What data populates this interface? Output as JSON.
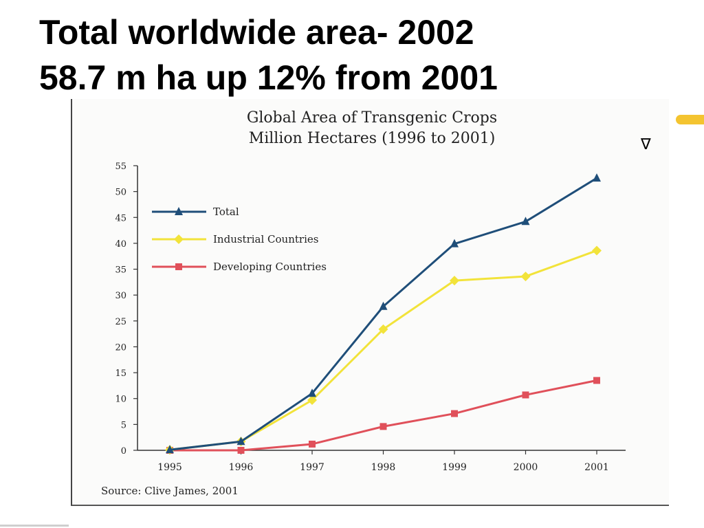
{
  "slide": {
    "title_line1": "Total worldwide area- 2002",
    "title_line2": "58.7 m ha up 12% from 2001",
    "corner_symbol": "∇"
  },
  "chart_data": {
    "type": "line",
    "title": "Global Area of Transgenic Crops",
    "subtitle": "Million Hectares (1996 to 2001)",
    "x": [
      "1995",
      "1996",
      "1997",
      "1998",
      "1999",
      "2000",
      "2001"
    ],
    "y_ticks": [
      0,
      5,
      10,
      15,
      20,
      25,
      30,
      35,
      40,
      45,
      50,
      55
    ],
    "ylim": [
      0,
      55
    ],
    "legend_placement": "top-left",
    "grid": false,
    "source": "Source: Clive James, 2001",
    "series": [
      {
        "name": "Total",
        "color": "#1f4e79",
        "marker": "triangle",
        "values": [
          0.1,
          1.7,
          11.0,
          27.8,
          39.9,
          44.2,
          52.6
        ]
      },
      {
        "name": "Industrial Countries",
        "color": "#f2e33a",
        "marker": "diamond",
        "values": [
          0.1,
          1.7,
          9.7,
          23.4,
          32.8,
          33.6,
          38.6
        ]
      },
      {
        "name": "Developing Countries",
        "color": "#e0505a",
        "marker": "square",
        "values": [
          0.0,
          0.0,
          1.2,
          4.6,
          7.1,
          10.7,
          13.5
        ]
      }
    ]
  }
}
